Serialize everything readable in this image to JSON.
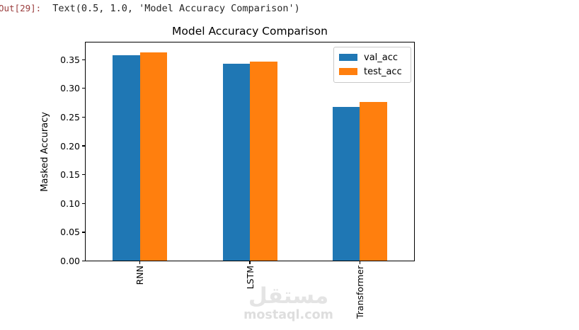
{
  "output_cell": {
    "prompt": "Out[29]:",
    "repr_text": "Text(0.5, 1.0, 'Model Accuracy Comparison')"
  },
  "chart_data": {
    "type": "bar",
    "title": "Model Accuracy Comparison",
    "xlabel": "",
    "ylabel": "Masked Accuracy",
    "categories": [
      "RNN",
      "LSTM",
      "Transformer"
    ],
    "series": [
      {
        "name": "val_acc",
        "color": "#1f77b4",
        "values": [
          0.358,
          0.343,
          0.268
        ]
      },
      {
        "name": "test_acc",
        "color": "#ff7f0e",
        "values": [
          0.362,
          0.346,
          0.276
        ]
      }
    ],
    "ylim": [
      0,
      0.381
    ],
    "yticks": [
      0.0,
      0.05,
      0.1,
      0.15,
      0.2,
      0.25,
      0.3,
      0.35
    ],
    "ytick_format_decimals": 2,
    "xtick_rotation": 90,
    "grid": false,
    "legend_position": "upper right"
  },
  "watermark": {
    "arabic": "مستقل",
    "domain": "mostaql.com",
    "color": "#e2e2e2"
  },
  "colors": {
    "out_prompt": "#9a3c3c",
    "code_text": "#262626",
    "spine": "#000000",
    "legend_border": "#c9c9c9"
  }
}
